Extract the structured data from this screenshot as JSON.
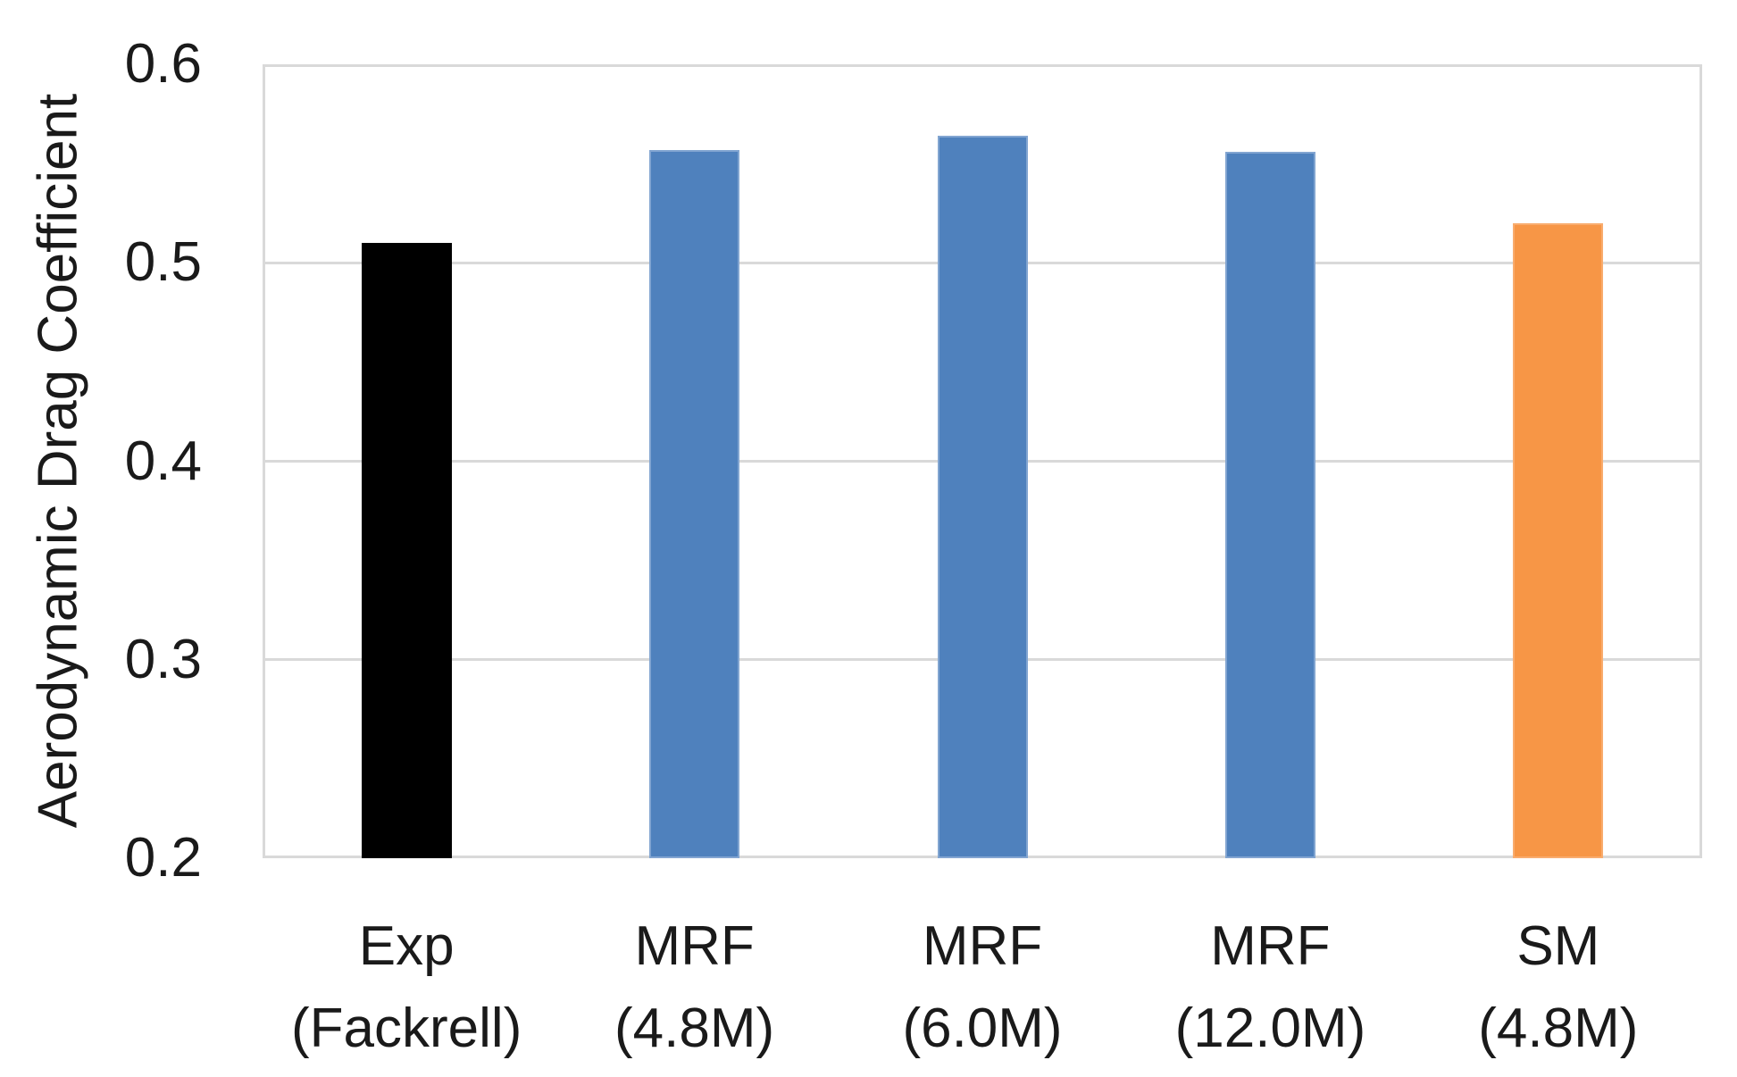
{
  "chart_data": {
    "type": "bar",
    "title": "",
    "xlabel": "",
    "ylabel": "Aerodynamic Drag Coefficient",
    "ylim": [
      0.2,
      0.6
    ],
    "yticks": [
      0.6,
      0.5,
      0.4,
      0.3,
      0.2
    ],
    "ytick_labels": [
      "0.6",
      "0.5",
      "0.4",
      "0.3",
      "0.2"
    ],
    "grid": true,
    "legend": false,
    "categories": [
      "Exp (Fackrell)",
      "MRF (4.8M)",
      "MRF (6.0M)",
      "MRF (12.0M)",
      "SM (4.8M)"
    ],
    "category_lines": [
      [
        "Exp",
        "(Fackrell)"
      ],
      [
        "MRF",
        "(4.8M)"
      ],
      [
        "MRF",
        "(6.0M)"
      ],
      [
        "MRF",
        "(12.0M)"
      ],
      [
        "SM",
        "(4.8M)"
      ]
    ],
    "series": [
      {
        "name": "Aerodynamic Drag Coefficient",
        "values": [
          0.51,
          0.557,
          0.564,
          0.556,
          0.52
        ]
      }
    ],
    "bar_colors": [
      "#000000",
      "#4F81BD",
      "#4F81BD",
      "#4F81BD",
      "#F79646"
    ],
    "bar_border_colors": [
      "#000000",
      "#82A5D1",
      "#82A5D1",
      "#82A5D1",
      "#F9AC6E"
    ],
    "colors": {
      "gridline": "#D9D9D9",
      "plot_border": "#D9D9D9",
      "text": "#1A1A1A",
      "background": "#FFFFFF"
    }
  }
}
